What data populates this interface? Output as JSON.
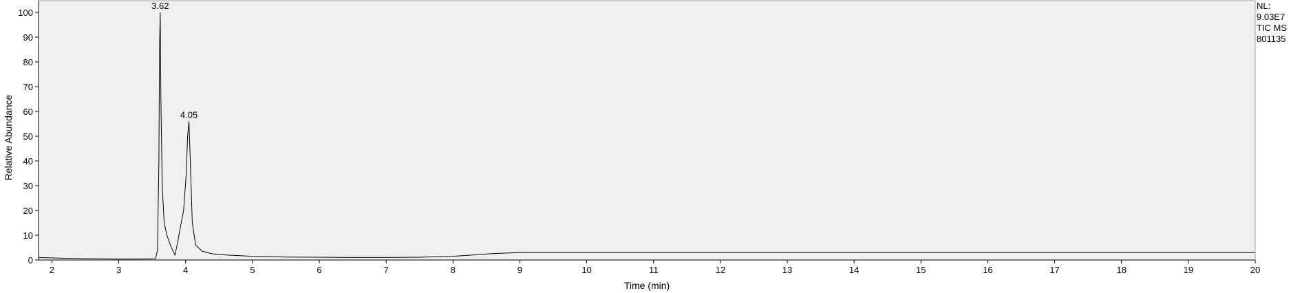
{
  "chart_data": {
    "type": "line",
    "xlabel": "Time (min)",
    "ylabel": "Relative Abundance",
    "xlim": [
      1.8,
      20
    ],
    "ylim": [
      0,
      100
    ],
    "x_ticks": [
      "2",
      "3",
      "4",
      "5",
      "6",
      "7",
      "8",
      "9",
      "10",
      "11",
      "12",
      "13",
      "14",
      "15",
      "16",
      "17",
      "18",
      "19",
      "20"
    ],
    "y_ticks": [
      "0",
      "10",
      "20",
      "30",
      "40",
      "50",
      "60",
      "70",
      "80",
      "90",
      "100"
    ],
    "grid": false,
    "line_color": "#000000",
    "background_color": "#f0f0f0",
    "peak_labels": [
      {
        "x": 3.62,
        "y": 100,
        "text": "3.62"
      },
      {
        "x": 4.05,
        "y": 56,
        "text": "4.05"
      }
    ],
    "series": [
      {
        "x": [
          1.8,
          2.2,
          2.6,
          3.0,
          3.3,
          3.55,
          3.58,
          3.6,
          3.61,
          3.62,
          3.63,
          3.65,
          3.68,
          3.72,
          3.78,
          3.84,
          3.88,
          3.92,
          3.97,
          4.01,
          4.03,
          4.05,
          4.07,
          4.1,
          4.15,
          4.25,
          4.4,
          4.6,
          5.0,
          5.5,
          6.0,
          6.5,
          7.0,
          7.5,
          8.0,
          8.3,
          8.6,
          9.0,
          9.5,
          10,
          11,
          12,
          13,
          14,
          15,
          16,
          17,
          18,
          19,
          20
        ],
        "y": [
          1.0,
          0.7,
          0.5,
          0.4,
          0.4,
          0.5,
          4.0,
          40.0,
          85.0,
          100.0,
          65.0,
          30.0,
          15.0,
          10.0,
          5.5,
          2.0,
          7.0,
          13.0,
          20.0,
          35.0,
          50.0,
          56.0,
          40.0,
          15.0,
          6.0,
          3.5,
          2.5,
          2.0,
          1.5,
          1.2,
          1.1,
          1.0,
          1.0,
          1.1,
          1.5,
          2.0,
          2.6,
          3.0,
          3.0,
          3.0,
          3.0,
          3.0,
          3.0,
          3.0,
          3.0,
          3.0,
          3.0,
          3.0,
          3.0,
          3.0
        ]
      }
    ]
  },
  "side_info": {
    "nl_label": "NL:",
    "nl_value": "9.03E7",
    "scan_filter": "TIC  MS",
    "sample_id": "801135"
  }
}
